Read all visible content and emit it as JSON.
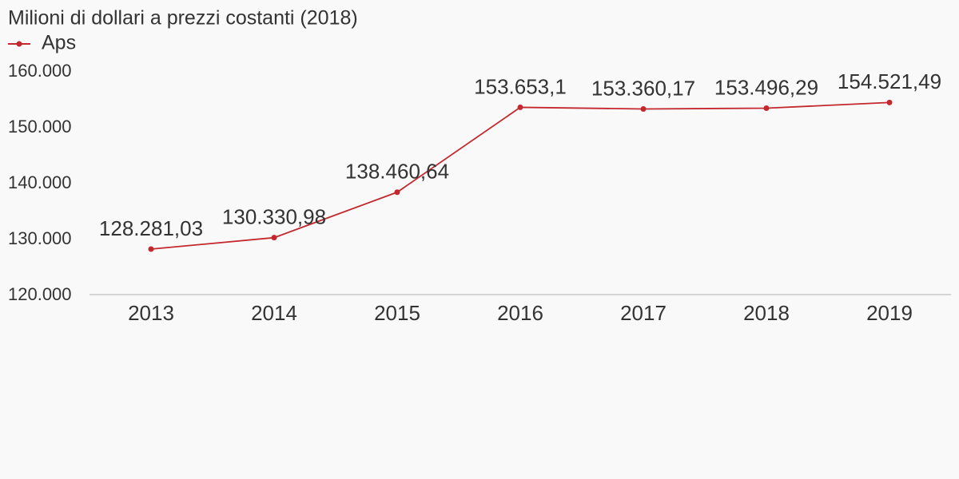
{
  "chart_data": {
    "type": "line",
    "title": "Milioni di dollari a prezzi costanti (2018)",
    "categories": [
      "2013",
      "2014",
      "2015",
      "2016",
      "2017",
      "2018",
      "2019"
    ],
    "series": [
      {
        "name": "Aps",
        "color": "#c3282f",
        "values": [
          128281.03,
          130330.98,
          138460.64,
          153653.1,
          153360.17,
          153496.29,
          154521.49
        ],
        "value_labels": [
          "128.281,03",
          "130.330,98",
          "138.460,64",
          "153.653,1",
          "153.360,17",
          "153.496,29",
          "154.521,49"
        ]
      }
    ],
    "ylim": [
      120000,
      160000
    ],
    "yticks": [
      {
        "value": 120000,
        "label": "120.000"
      },
      {
        "value": 130000,
        "label": "130.000"
      },
      {
        "value": 140000,
        "label": "140.000"
      },
      {
        "value": 150000,
        "label": "150.000"
      },
      {
        "value": 160000,
        "label": "160.000"
      }
    ],
    "legend": "top-left"
  }
}
